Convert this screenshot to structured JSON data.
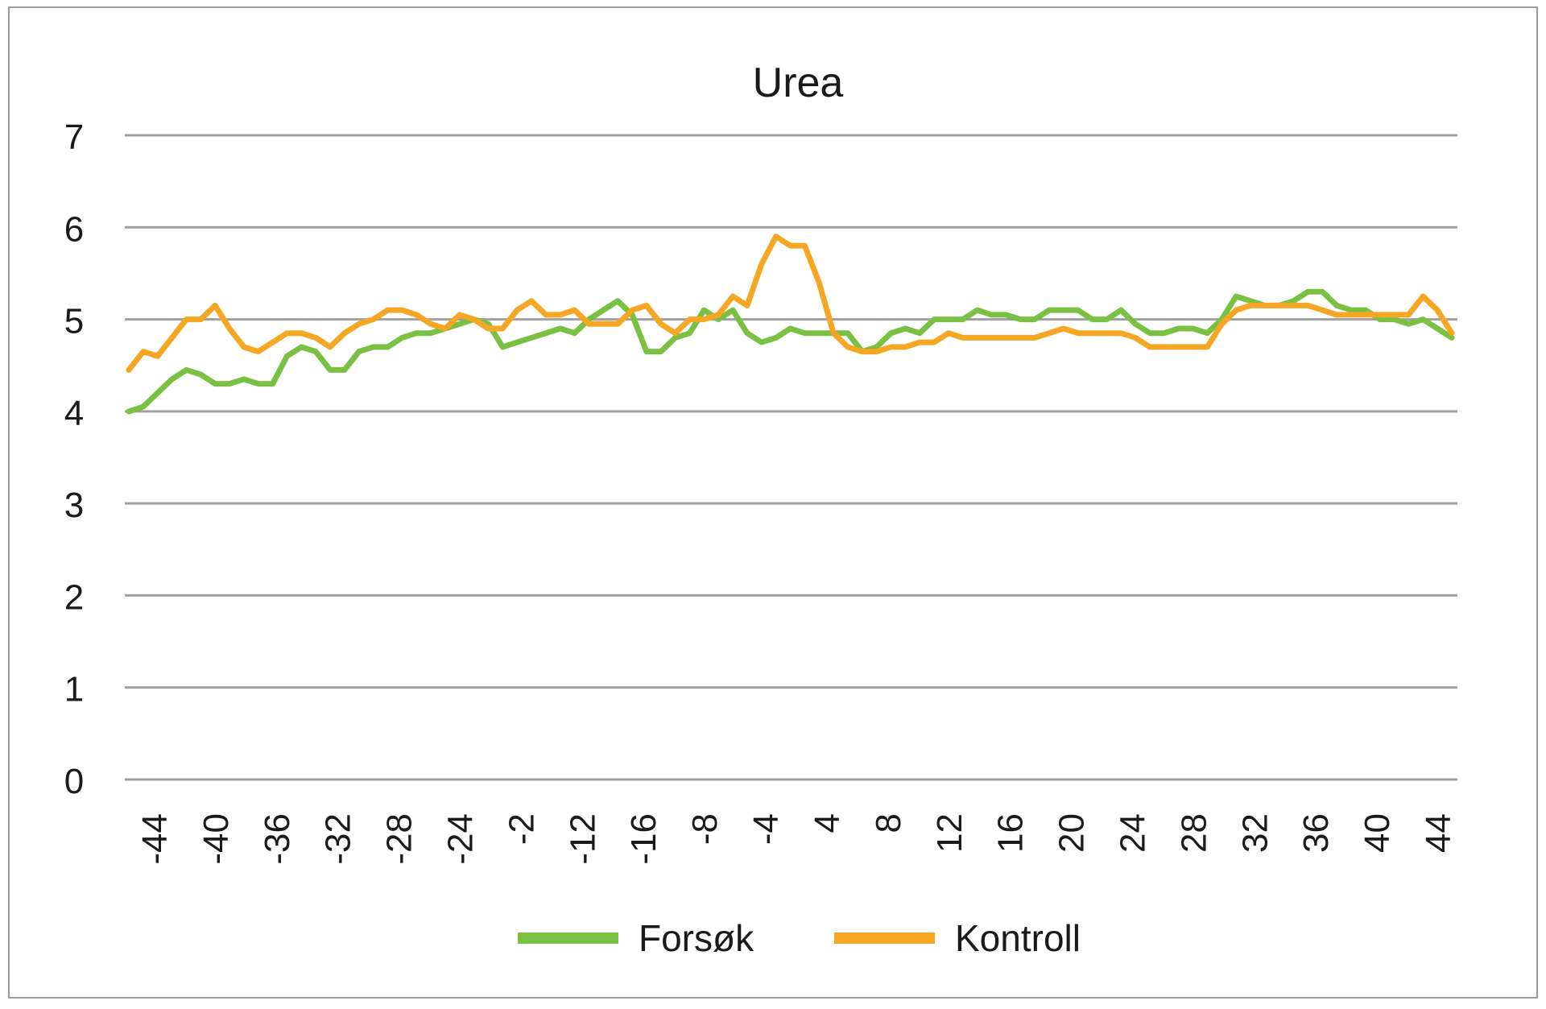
{
  "chart_data": {
    "type": "line",
    "title": "Urea",
    "xlabel": "",
    "ylabel": "",
    "ylim": [
      0,
      7
    ],
    "yticks": [
      0,
      1,
      2,
      3,
      4,
      5,
      6,
      7
    ],
    "grid": "horizontal",
    "legend_position": "bottom",
    "x_tick_labels": [
      "-44",
      "-40",
      "-36",
      "-32",
      "-28",
      "-24",
      "-2",
      "-12",
      "-16",
      "-8",
      "-4",
      "4",
      "8",
      "12",
      "16",
      "20",
      "24",
      "28",
      "32",
      "36",
      "40",
      "44"
    ],
    "series": [
      {
        "name": "Forsøk",
        "color": "#7ac143",
        "values": [
          4.0,
          4.05,
          4.2,
          4.35,
          4.45,
          4.4,
          4.3,
          4.3,
          4.35,
          4.3,
          4.3,
          4.6,
          4.7,
          4.65,
          4.45,
          4.45,
          4.65,
          4.7,
          4.7,
          4.8,
          4.85,
          4.85,
          4.9,
          4.95,
          5.0,
          4.95,
          4.7,
          4.75,
          4.8,
          4.85,
          4.9,
          4.85,
          5.0,
          5.1,
          5.2,
          5.05,
          4.65,
          4.65,
          4.8,
          4.85,
          5.1,
          5.0,
          5.1,
          4.85,
          4.75,
          4.8,
          4.9,
          4.85,
          4.85,
          4.85,
          4.85,
          4.65,
          4.7,
          4.85,
          4.9,
          4.85,
          5.0,
          5.0,
          5.0,
          5.1,
          5.05,
          5.05,
          5.0,
          5.0,
          5.1,
          5.1,
          5.1,
          5.0,
          5.0,
          5.1,
          4.95,
          4.85,
          4.85,
          4.9,
          4.9,
          4.85,
          5.0,
          5.25,
          5.2,
          5.15,
          5.15,
          5.2,
          5.3,
          5.3,
          5.15,
          5.1,
          5.1,
          5.0,
          5.0,
          4.95,
          5.0,
          4.9,
          4.8
        ]
      },
      {
        "name": "Kontroll",
        "color": "#f5a623",
        "values": [
          4.45,
          4.65,
          4.6,
          4.8,
          5.0,
          5.0,
          5.15,
          4.9,
          4.7,
          4.65,
          4.75,
          4.85,
          4.85,
          4.8,
          4.7,
          4.85,
          4.95,
          5.0,
          5.1,
          5.1,
          5.05,
          4.95,
          4.9,
          5.05,
          5.0,
          4.9,
          4.9,
          5.1,
          5.2,
          5.05,
          5.05,
          5.1,
          4.95,
          4.95,
          4.95,
          5.1,
          5.15,
          4.95,
          4.85,
          5.0,
          5.0,
          5.05,
          5.25,
          5.15,
          5.6,
          5.9,
          5.8,
          5.8,
          5.4,
          4.85,
          4.7,
          4.65,
          4.65,
          4.7,
          4.7,
          4.75,
          4.75,
          4.85,
          4.8,
          4.8,
          4.8,
          4.8,
          4.8,
          4.8,
          4.85,
          4.9,
          4.85,
          4.85,
          4.85,
          4.85,
          4.8,
          4.7,
          4.7,
          4.7,
          4.7,
          4.7,
          4.95,
          5.1,
          5.15,
          5.15,
          5.15,
          5.15,
          5.15,
          5.1,
          5.05,
          5.05,
          5.05,
          5.05,
          5.05,
          5.05,
          5.25,
          5.1,
          4.85
        ]
      }
    ]
  }
}
